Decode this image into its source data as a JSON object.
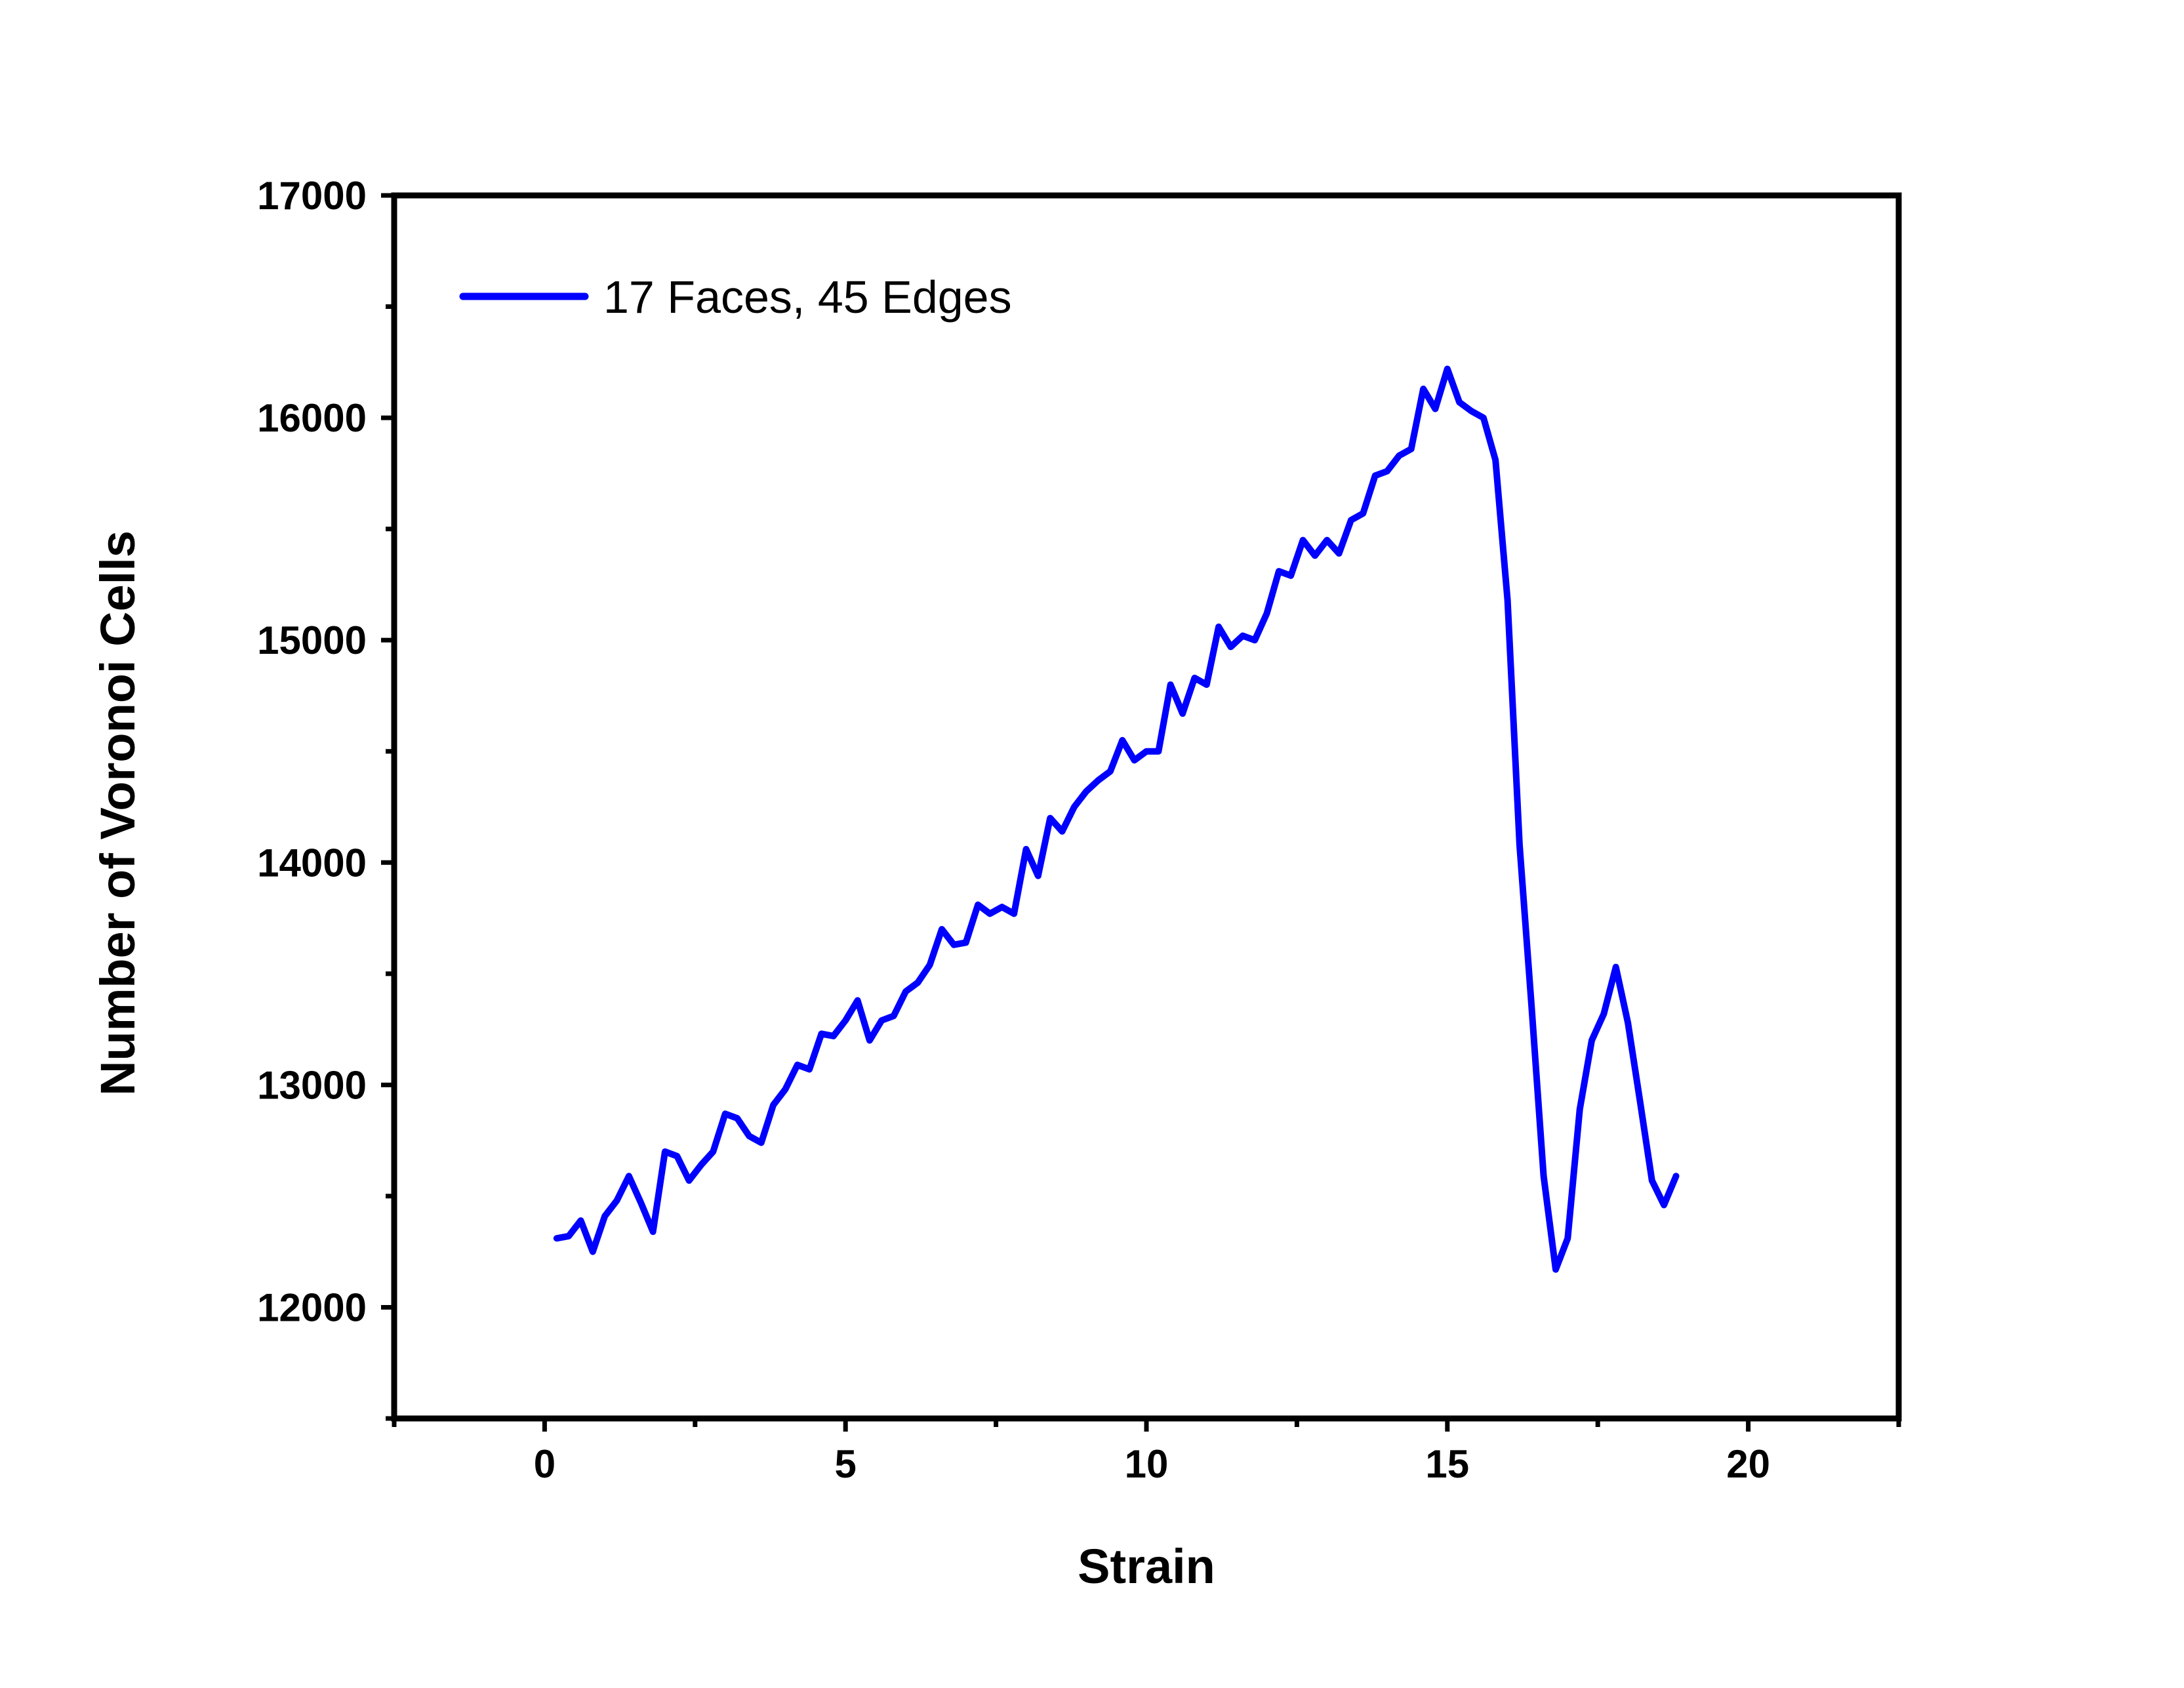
{
  "chart_data": {
    "type": "line",
    "title": "",
    "xlabel": "Strain",
    "ylabel": "Number of Voronoi Cells",
    "xlim": [
      -2.5,
      22.5
    ],
    "ylim": [
      11500,
      17000
    ],
    "x_ticks": [
      0,
      5,
      10,
      15,
      20
    ],
    "x_tick_labels": [
      "0",
      "5",
      "10",
      "15",
      "20"
    ],
    "x_minor_ticks": [
      -2.5,
      2.5,
      7.5,
      12.5,
      17.5,
      22.5
    ],
    "y_ticks": [
      12000,
      13000,
      14000,
      15000,
      16000,
      17000
    ],
    "y_tick_labels": [
      "12000",
      "13000",
      "14000",
      "15000",
      "16000",
      "17000"
    ],
    "y_minor_ticks": [
      11500,
      12500,
      13500,
      14500,
      15500,
      16500
    ],
    "grid": false,
    "legend_position": "top-left",
    "series": [
      {
        "name": "17 Faces, 45 Edges",
        "color": "#0000ff",
        "x": [
          0.2,
          0.4,
          0.6,
          0.8,
          1.0,
          1.2,
          1.4,
          1.6,
          1.8,
          2.0,
          2.2,
          2.4,
          2.6,
          2.8,
          3.0,
          3.2,
          3.4,
          3.6,
          3.8,
          4.0,
          4.2,
          4.4,
          4.6,
          4.8,
          5.0,
          5.2,
          5.4,
          5.6,
          5.8,
          6.0,
          6.2,
          6.4,
          6.6,
          6.8,
          7.0,
          7.2,
          7.4,
          7.6,
          7.8,
          8.0,
          8.2,
          8.4,
          8.6,
          8.8,
          9.0,
          9.2,
          9.4,
          9.6,
          9.8,
          10.0,
          10.2,
          10.4,
          10.6,
          10.8,
          11.0,
          11.2,
          11.4,
          11.6,
          11.8,
          12.0,
          12.2,
          12.4,
          12.6,
          12.8,
          13.0,
          13.2,
          13.4,
          13.6,
          13.8,
          14.0,
          14.2,
          14.4,
          14.6,
          14.8,
          15.0,
          15.2,
          15.4,
          15.6,
          15.8,
          16.0,
          16.2,
          16.4,
          16.6,
          16.8,
          17.0,
          17.2,
          17.4,
          17.6,
          17.8,
          18.0,
          18.2,
          18.4,
          18.6,
          18.8
        ],
        "y": [
          12310,
          12320,
          12390,
          12250,
          12410,
          12480,
          12590,
          12470,
          12340,
          12700,
          12680,
          12570,
          12640,
          12700,
          12870,
          12850,
          12770,
          12740,
          12910,
          12980,
          13090,
          13070,
          13230,
          13220,
          13290,
          13380,
          13200,
          13290,
          13310,
          13420,
          13460,
          13540,
          13700,
          13630,
          13640,
          13810,
          13770,
          13800,
          13770,
          14060,
          13940,
          14200,
          14140,
          14250,
          14320,
          14370,
          14410,
          14550,
          14460,
          14500,
          14500,
          14800,
          14670,
          14830,
          14800,
          15060,
          14970,
          15020,
          15000,
          15120,
          15310,
          15290,
          15450,
          15380,
          15450,
          15390,
          15540,
          15570,
          15740,
          15760,
          15830,
          15860,
          16130,
          16040,
          16220,
          16070,
          16030,
          16000,
          15810,
          15180,
          14080,
          13350,
          12590,
          12170,
          12310,
          12890,
          13200,
          13320,
          13530,
          13280,
          12930,
          12570,
          12460,
          12590
        ]
      }
    ]
  }
}
